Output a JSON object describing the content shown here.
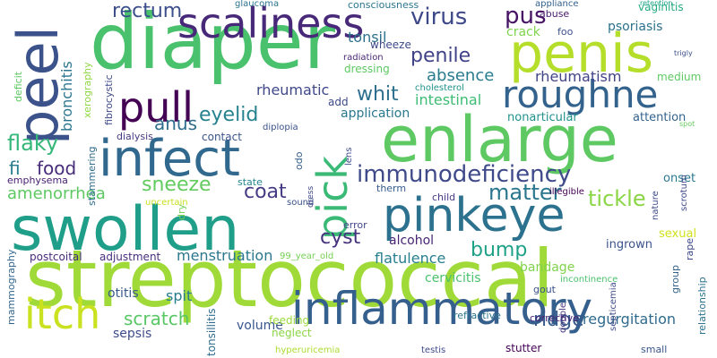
{
  "words": [
    {
      "text": "streptococcal",
      "color": "#a0da39"
    },
    {
      "text": "diaper",
      "color": "#4ac16d"
    },
    {
      "text": "enlarge",
      "color": "#5ec962"
    },
    {
      "text": "swollen",
      "color": "#1f9e89"
    },
    {
      "text": "penis",
      "color": "#b5de2b"
    },
    {
      "text": "infect",
      "color": "#31688e"
    },
    {
      "text": "pinkeye",
      "color": "#2c728e"
    },
    {
      "text": "inflammatory",
      "color": "#355f8d"
    },
    {
      "text": "scaliness",
      "color": "#482979"
    },
    {
      "text": "roughne",
      "color": "#33638d"
    },
    {
      "text": "peel",
      "color": "#3b528b"
    },
    {
      "text": "pull",
      "color": "#440154"
    },
    {
      "text": "itch",
      "color": "#cae11f"
    },
    {
      "text": "pick",
      "color": "#3aba76"
    },
    {
      "text": "immunodeficiency",
      "color": "#3e4a89"
    },
    {
      "text": "virus",
      "color": "#3e4989"
    },
    {
      "text": "pus",
      "color": "#471365"
    },
    {
      "text": "penile",
      "color": "#414287"
    },
    {
      "text": "absence",
      "color": "#287c8e"
    },
    {
      "text": "whit",
      "color": "#2d708e"
    },
    {
      "text": "matter",
      "color": "#2a768e"
    },
    {
      "text": "tickle",
      "color": "#8bd646"
    },
    {
      "text": "rectum",
      "color": "#3c4f8a"
    },
    {
      "text": "eyelid",
      "color": "#26828e"
    },
    {
      "text": "anus",
      "color": "#2e6e8e"
    },
    {
      "text": "flaky",
      "color": "#35b779"
    },
    {
      "text": "food",
      "color": "#472c7a"
    },
    {
      "text": "amenorrhea",
      "color": "#5ec962"
    },
    {
      "text": "sneeze",
      "color": "#63cb5f"
    },
    {
      "text": "coat",
      "color": "#443b84"
    },
    {
      "text": "cyst",
      "color": "#46327e"
    },
    {
      "text": "bump",
      "color": "#1fa187"
    },
    {
      "text": "ridge",
      "color": "#375b8d"
    },
    {
      "text": "scratch",
      "color": "#58c765"
    },
    {
      "text": "menstruation",
      "color": "#2a778e"
    },
    {
      "text": "flatulence",
      "color": "#277f8e"
    },
    {
      "text": "rheumatic",
      "color": "#3f4889"
    },
    {
      "text": "rheumatism",
      "color": "#414487"
    },
    {
      "text": "intestinal",
      "color": "#3dbc74"
    },
    {
      "text": "application",
      "color": "#2a788e"
    },
    {
      "text": "tonsil",
      "color": "#2d718e"
    },
    {
      "text": "crack",
      "color": "#7fd34e"
    },
    {
      "text": "psoriasis",
      "color": "#2c728e"
    },
    {
      "text": "bronchitis",
      "color": "#2b758e"
    },
    {
      "text": "regurgitation",
      "color": "#2f6b8e"
    },
    {
      "text": "alcohol",
      "color": "#482475"
    },
    {
      "text": "bandage",
      "color": "#81d34d"
    },
    {
      "text": "cervicitis",
      "color": "#4ac16d"
    },
    {
      "text": "otitis",
      "color": "#38598c"
    },
    {
      "text": "spit",
      "color": "#287d8e"
    },
    {
      "text": "volume",
      "color": "#39568c"
    },
    {
      "text": "sepsis",
      "color": "#3e4c8a"
    },
    {
      "text": "fi",
      "color": "#287d8e"
    },
    {
      "text": "emphysema",
      "color": "#482071"
    },
    {
      "text": "ingrown",
      "color": "#3a538b"
    },
    {
      "text": "nonarticular",
      "color": "#21918c"
    },
    {
      "text": "attention",
      "color": "#33638d"
    },
    {
      "text": "onset",
      "color": "#2a788e"
    },
    {
      "text": "sexual",
      "color": "#d0e11c"
    },
    {
      "text": "glaucoma",
      "color": "#2c738e"
    },
    {
      "text": "consciousness",
      "color": "#2a768e"
    },
    {
      "text": "appliance",
      "color": "#34608d"
    },
    {
      "text": "abuse",
      "color": "#481a6c"
    },
    {
      "text": "foo",
      "color": "#3c508b"
    },
    {
      "text": "vaginitis",
      "color": "#25ab82"
    },
    {
      "text": "wheeze",
      "color": "#3e4a89"
    },
    {
      "text": "radiation",
      "color": "#482878"
    },
    {
      "text": "dressing",
      "color": "#5ec962"
    },
    {
      "text": "cholesterol",
      "color": "#20928c"
    },
    {
      "text": "medium",
      "color": "#5ec962"
    },
    {
      "text": "add",
      "color": "#3e4989"
    },
    {
      "text": "contact",
      "color": "#3a538b"
    },
    {
      "text": "dialysis",
      "color": "#453781"
    },
    {
      "text": "diplopia",
      "color": "#3b528b"
    },
    {
      "text": "state",
      "color": "#25858e"
    },
    {
      "text": "therm",
      "color": "#365c8d"
    },
    {
      "text": "child",
      "color": "#443a83"
    },
    {
      "text": "illegible",
      "color": "#440154"
    },
    {
      "text": "uncertain",
      "color": "#c8e020"
    },
    {
      "text": "sound",
      "color": "#3b518b"
    },
    {
      "text": "error",
      "color": "#404688"
    },
    {
      "text": "99_year_old",
      "color": "#75d054"
    },
    {
      "text": "adjustment",
      "color": "#472f7d"
    },
    {
      "text": "postcoital",
      "color": "#482979"
    },
    {
      "text": "mammography",
      "color": "#32658e"
    },
    {
      "text": "feeding",
      "color": "#9bd93c"
    },
    {
      "text": "neglect",
      "color": "#8bd646"
    },
    {
      "text": "hyperuricemia",
      "color": "#addc30"
    },
    {
      "text": "testis",
      "color": "#3e4989"
    },
    {
      "text": "refractive",
      "color": "#2b748e"
    },
    {
      "text": "corrective",
      "color": "#482576"
    },
    {
      "text": "stutter",
      "color": "#440154"
    },
    {
      "text": "small",
      "color": "#39568c"
    },
    {
      "text": "incontinence",
      "color": "#4ac16d"
    },
    {
      "text": "gout",
      "color": "#3b528b"
    },
    {
      "text": "retention",
      "color": "#20a486"
    },
    {
      "text": "spot",
      "color": "#65cb5e"
    },
    {
      "text": "trigly",
      "color": "#3b518b"
    },
    {
      "text": "xerography",
      "color": "#90d743"
    },
    {
      "text": "fibrocystic",
      "color": "#3e4a89"
    },
    {
      "text": "deficit",
      "color": "#5ec962"
    },
    {
      "text": "stammering",
      "color": "#2f6c8e"
    },
    {
      "text": "odo",
      "color": "#355f8d"
    },
    {
      "text": "lens",
      "color": "#3e4989"
    },
    {
      "text": "dress",
      "color": "#3f4889"
    },
    {
      "text": "dry",
      "color": "#73d056"
    },
    {
      "text": "scrotum",
      "color": "#3e4989"
    },
    {
      "text": "nature",
      "color": "#3e4989"
    },
    {
      "text": "group",
      "color": "#33638d"
    },
    {
      "text": "rape",
      "color": "#3e4989"
    },
    {
      "text": "relationship",
      "color": "#2c728e"
    },
    {
      "text": "septicemia",
      "color": "#3e4a89"
    },
    {
      "text": "double",
      "color": "#46337e"
    },
    {
      "text": "tonsillitis",
      "color": "#2f6b8e"
    }
  ]
}
